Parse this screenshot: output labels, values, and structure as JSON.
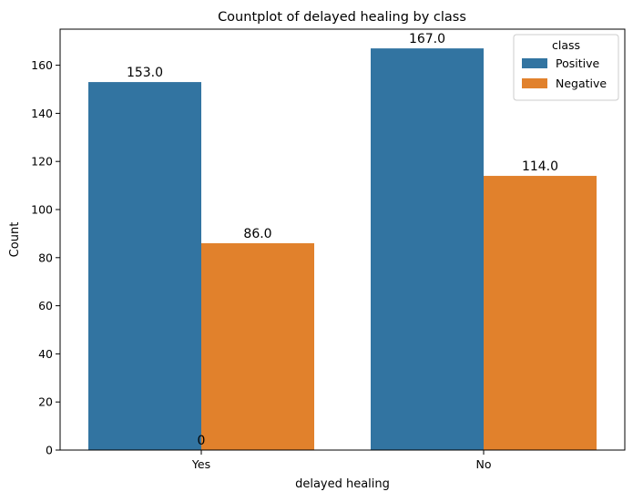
{
  "chart_data": {
    "type": "bar",
    "title": "Countplot of delayed healing by class",
    "xlabel": "delayed healing",
    "ylabel": "Count",
    "categories": [
      "Yes",
      "No"
    ],
    "series": [
      {
        "name": "Positive",
        "values": [
          153,
          167
        ],
        "labels": [
          "153.0",
          "167.0"
        ],
        "color": "#3274a1"
      },
      {
        "name": "Negative",
        "values": [
          86,
          114
        ],
        "labels": [
          "86.0",
          "114.0"
        ],
        "color": "#e1812c"
      }
    ],
    "extra_annotations": [
      {
        "text": "0",
        "category": "Yes",
        "value": 0
      }
    ],
    "ylim": [
      0,
      175
    ],
    "yticks": [
      0,
      20,
      40,
      60,
      80,
      100,
      120,
      140,
      160
    ],
    "grid": false,
    "legend": {
      "title": "class",
      "position": "top-right"
    }
  }
}
